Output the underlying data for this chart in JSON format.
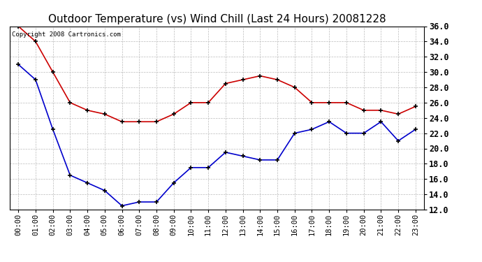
{
  "title": "Outdoor Temperature (vs) Wind Chill (Last 24 Hours) 20081228",
  "copyright_text": "Copyright 2008 Cartronics.com",
  "x_labels": [
    "00:00",
    "01:00",
    "02:00",
    "03:00",
    "04:00",
    "05:00",
    "06:00",
    "07:00",
    "08:00",
    "09:00",
    "10:00",
    "11:00",
    "12:00",
    "13:00",
    "14:00",
    "15:00",
    "16:00",
    "17:00",
    "18:00",
    "19:00",
    "20:00",
    "21:00",
    "22:00",
    "23:00"
  ],
  "temp_data": [
    36.0,
    34.0,
    30.0,
    26.0,
    25.0,
    24.5,
    23.5,
    23.5,
    23.5,
    24.5,
    26.0,
    26.0,
    28.5,
    29.0,
    29.5,
    29.0,
    28.0,
    26.0,
    26.0,
    26.0,
    25.0,
    25.0,
    24.5,
    25.5
  ],
  "wind_chill_data": [
    31.0,
    29.0,
    22.5,
    16.5,
    15.5,
    14.5,
    12.5,
    13.0,
    13.0,
    15.5,
    17.5,
    17.5,
    19.5,
    19.0,
    18.5,
    18.5,
    22.0,
    22.5,
    23.5,
    22.0,
    22.0,
    23.5,
    21.0,
    22.5
  ],
  "temp_color": "#cc0000",
  "wind_chill_color": "#0000cc",
  "bg_color": "#ffffff",
  "grid_color": "#bbbbbb",
  "ylim_min": 12.0,
  "ylim_max": 36.0,
  "ytick_step": 2.0,
  "title_fontsize": 11,
  "copyright_fontsize": 6.5,
  "tick_fontsize": 7.5,
  "ytick_fontsize": 8.5
}
